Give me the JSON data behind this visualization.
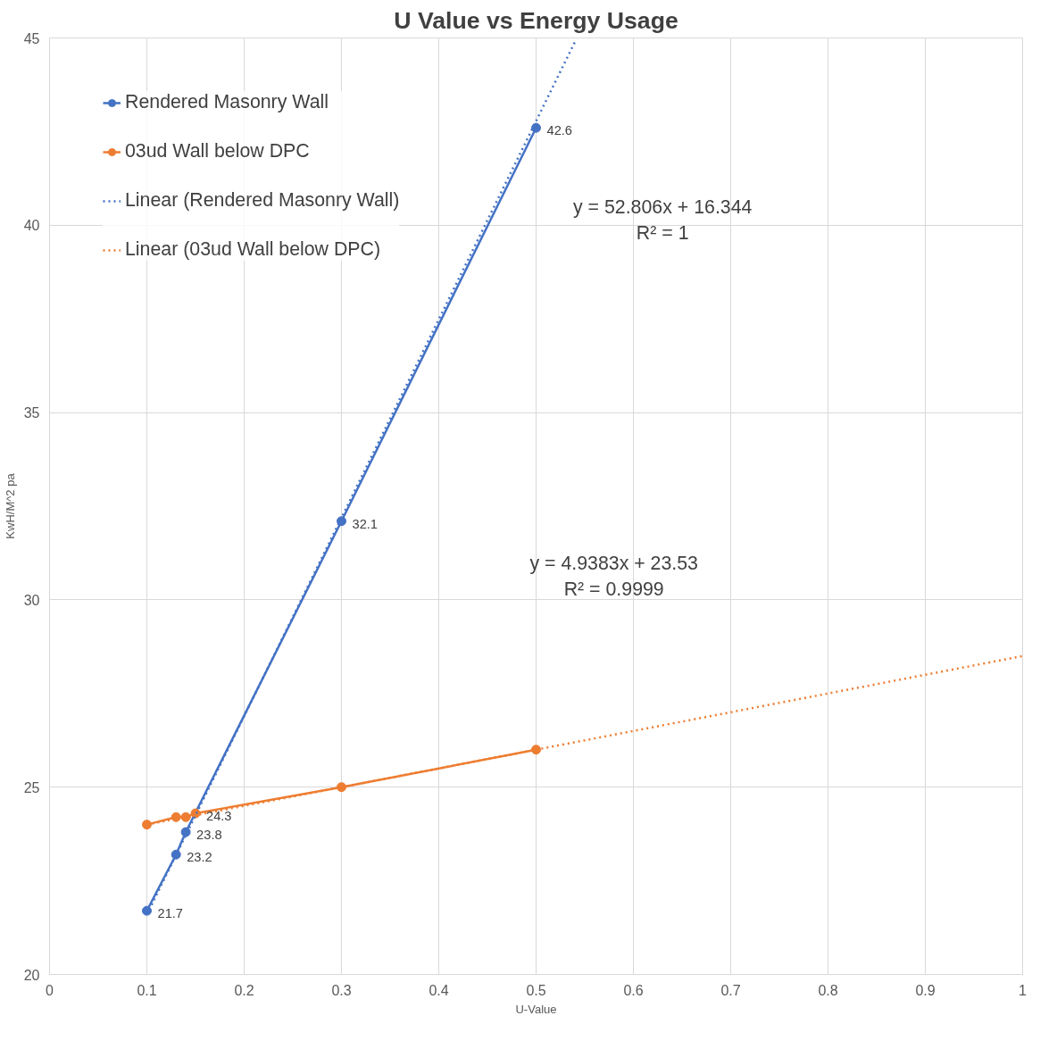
{
  "chart_data": {
    "type": "line",
    "title": "U Value vs Energy Usage",
    "xlabel": "U-Value",
    "ylabel": "KwH/M^2 pa",
    "xlim": [
      0,
      1
    ],
    "xticks": [
      0,
      0.1,
      0.2,
      0.3,
      0.4,
      0.5,
      0.6,
      0.7,
      0.8,
      0.9,
      1
    ],
    "ylim": [
      20,
      45
    ],
    "yticks": [
      20,
      25,
      30,
      35,
      40,
      45
    ],
    "grid": true,
    "legend": "top left",
    "marker": "circle",
    "series": [
      {
        "name": "Rendered Masonry Wall",
        "color": "#4472c4",
        "x": [
          0.1,
          0.13,
          0.14,
          0.3,
          0.5
        ],
        "values": [
          21.7,
          23.2,
          23.8,
          32.1,
          42.6
        ],
        "value_labels": [
          "21.7",
          "23.2",
          "23.8",
          "32.1",
          "42.6"
        ]
      },
      {
        "name": "03ud Wall below DPC",
        "color": "#ed7d31",
        "x": [
          0.1,
          0.13,
          0.14,
          0.15,
          0.3,
          0.5
        ],
        "values": [
          24.0,
          24.2,
          24.2,
          24.3,
          25.0,
          26.0
        ],
        "value_labels": [
          null,
          null,
          null,
          "24.3",
          null,
          null
        ]
      },
      {
        "name": "Linear (Rendered Masonry Wall)",
        "color": "#4472c4",
        "type": "line",
        "line_style": "dotted",
        "marker": "none",
        "x": [
          0.1,
          0.54
        ],
        "values": [
          21.6,
          44.9
        ]
      },
      {
        "name": "Linear (03ud Wall below DPC)",
        "color": "#ed7d31",
        "type": "line",
        "line_style": "dotted",
        "marker": "none",
        "x": [
          0.1,
          1
        ],
        "values": [
          24.0,
          28.5
        ]
      }
    ],
    "annotations": [
      "y = 52.806x + 16.344\nR² = 1",
      "y = 4.9383x + 23.53\nR² = 0.9999"
    ]
  }
}
